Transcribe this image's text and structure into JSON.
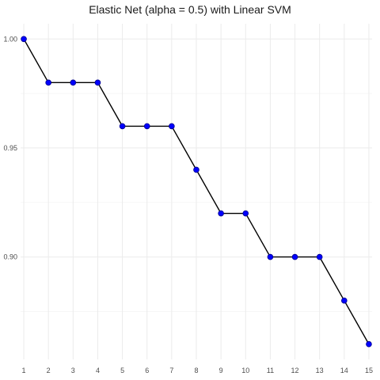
{
  "chart_data": {
    "type": "line",
    "title": "Elastic Net (alpha = 0.5) with Linear SVM",
    "xlabel": "",
    "ylabel": "",
    "x": [
      1,
      2,
      3,
      4,
      5,
      6,
      7,
      8,
      9,
      10,
      11,
      12,
      13,
      14,
      15
    ],
    "series": [
      {
        "values": [
          1.0,
          0.98,
          0.98,
          0.98,
          0.96,
          0.96,
          0.96,
          0.94,
          0.92,
          0.92,
          0.9,
          0.9,
          0.9,
          0.88,
          0.86
        ]
      }
    ],
    "xticks": [
      "1",
      "2",
      "3",
      "4",
      "5",
      "6",
      "7",
      "8",
      "9",
      "10",
      "11",
      "12",
      "13",
      "14",
      "15"
    ],
    "yticks": [
      "0.90",
      "0.95",
      "1.00"
    ],
    "xlim": [
      0.87,
      15.13
    ],
    "ylim": [
      0.853,
      1.007
    ],
    "grid": true,
    "legend": "none",
    "colors": {
      "line": "#000000",
      "point_fill": "#0000ff",
      "point_stroke": "#00008b",
      "grid_major": "#ebebeb",
      "grid_minor": "#f4f4f4"
    }
  }
}
